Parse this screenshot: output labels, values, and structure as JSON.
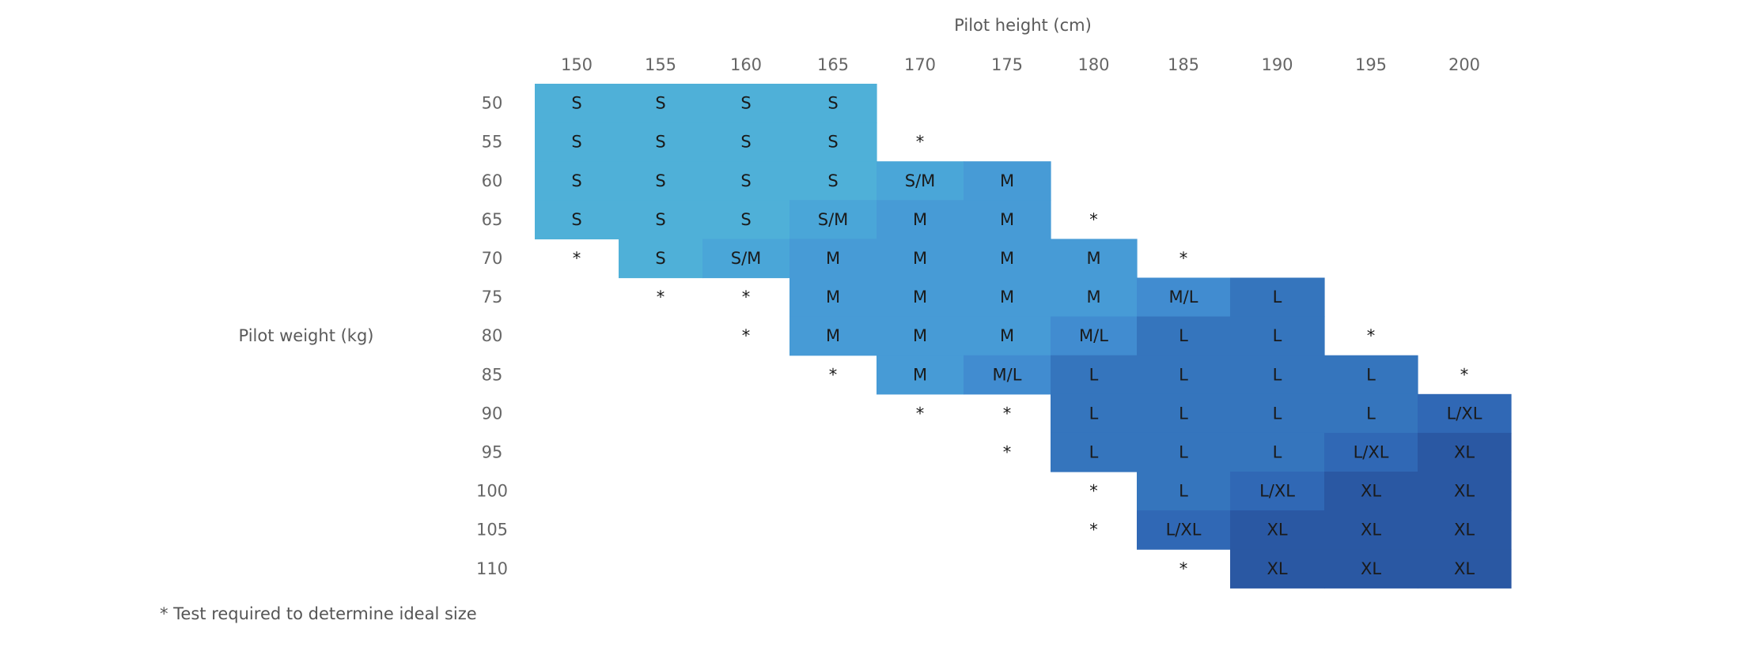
{
  "chart_data": {
    "type": "heatmap",
    "xlabel": "Pilot height (cm)",
    "ylabel": "Pilot weight (kg)",
    "x": [
      "150",
      "155",
      "160",
      "165",
      "170",
      "175",
      "180",
      "185",
      "190",
      "195",
      "200"
    ],
    "y": [
      "50",
      "55",
      "60",
      "65",
      "70",
      "75",
      "80",
      "85",
      "90",
      "95",
      "100",
      "105",
      "110"
    ],
    "cells": [
      [
        "S",
        "S",
        "S",
        "S",
        "",
        "",
        "",
        "",
        "",
        "",
        ""
      ],
      [
        "S",
        "S",
        "S",
        "S",
        "*",
        "",
        "",
        "",
        "",
        "",
        ""
      ],
      [
        "S",
        "S",
        "S",
        "S",
        "S/M",
        "M",
        "",
        "",
        "",
        "",
        ""
      ],
      [
        "S",
        "S",
        "S",
        "S/M",
        "M",
        "M",
        "*",
        "",
        "",
        "",
        ""
      ],
      [
        "*",
        "S",
        "S/M",
        "M",
        "M",
        "M",
        "M",
        "*",
        "",
        "",
        ""
      ],
      [
        "",
        "*",
        "*",
        "M",
        "M",
        "M",
        "M",
        "M/L",
        "L",
        "",
        ""
      ],
      [
        "",
        "",
        "*",
        "M",
        "M",
        "M",
        "M/L",
        "L",
        "L",
        "*",
        ""
      ],
      [
        "",
        "",
        "",
        "*",
        "M",
        "M/L",
        "L",
        "L",
        "L",
        "L",
        "*"
      ],
      [
        "",
        "",
        "",
        "",
        "*",
        "*",
        "L",
        "L",
        "L",
        "L",
        "L/XL"
      ],
      [
        "",
        "",
        "",
        "",
        "",
        "*",
        "L",
        "L",
        "L",
        "L/XL",
        "XL"
      ],
      [
        "",
        "",
        "",
        "",
        "",
        "",
        "*",
        "L",
        "L/XL",
        "XL",
        "XL"
      ],
      [
        "",
        "",
        "",
        "",
        "",
        "",
        "*",
        "L/XL",
        "XL",
        "XL",
        "XL"
      ],
      [
        "",
        "",
        "",
        "",
        "",
        "",
        "",
        "*",
        "XL",
        "XL",
        "XL"
      ]
    ],
    "colors": {
      "S": "#4fb0d8",
      "S/M": "#4aa6d8",
      "M": "#479bd6",
      "M/L": "#418cd0",
      "L": "#3575bd",
      "L/XL": "#3068b5",
      "XL": "#2a58a3"
    },
    "legend": "none",
    "grid": false
  },
  "footnote": "* Test required to determine ideal size"
}
